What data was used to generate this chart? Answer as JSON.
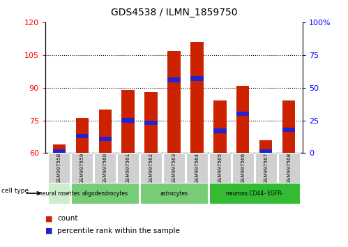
{
  "title": "GDS4538 / ILMN_1859750",
  "samples": [
    "GSM997558",
    "GSM997559",
    "GSM997560",
    "GSM997561",
    "GSM997562",
    "GSM997563",
    "GSM997564",
    "GSM997565",
    "GSM997566",
    "GSM997567",
    "GSM997568"
  ],
  "count_values": [
    64,
    76,
    80,
    89,
    88,
    107,
    111,
    84,
    91,
    66,
    84
  ],
  "percentile_values": [
    1,
    13,
    11,
    25,
    23,
    56,
    57,
    17,
    30,
    1,
    18
  ],
  "y_min": 60,
  "y_max": 120,
  "y_ticks": [
    60,
    75,
    90,
    105,
    120
  ],
  "y2_ticks": [
    0,
    25,
    50,
    75,
    100
  ],
  "bar_color": "#cc2200",
  "percentile_color": "#2222cc",
  "cell_type_groups": [
    {
      "label": "neural rosettes",
      "start": 0,
      "end": 1,
      "color": "#cceecc"
    },
    {
      "label": "oligodendrocytes",
      "start": 1,
      "end": 4,
      "color": "#77cc77"
    },
    {
      "label": "astrocytes",
      "start": 4,
      "end": 7,
      "color": "#77cc77"
    },
    {
      "label": "neurons CD44- EGFR-",
      "start": 7,
      "end": 11,
      "color": "#33bb33"
    }
  ],
  "bar_width": 0.55
}
